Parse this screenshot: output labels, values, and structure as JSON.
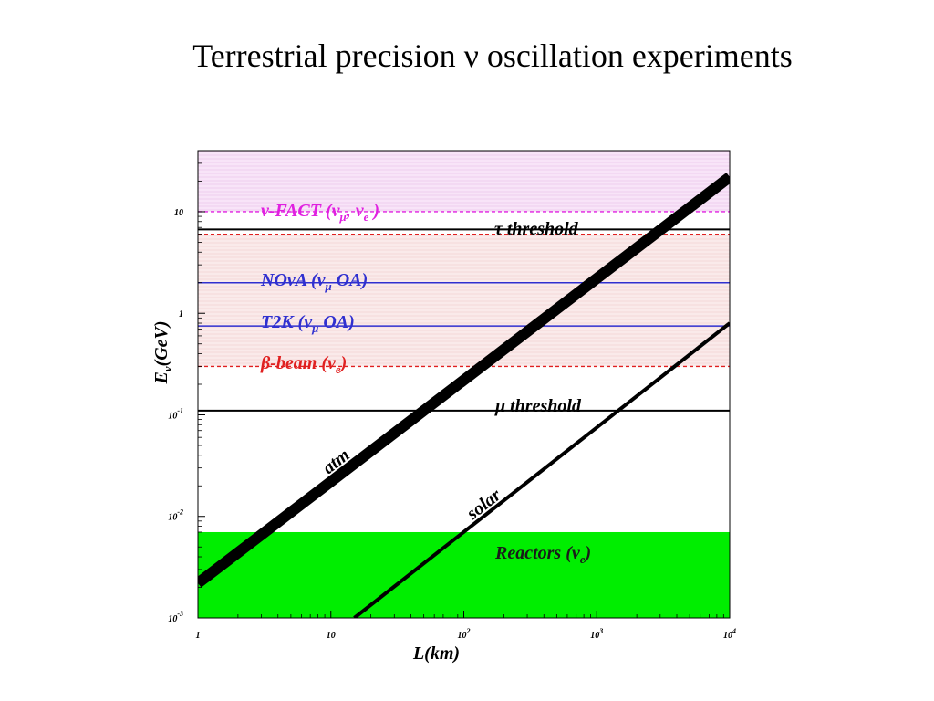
{
  "title": "Terrestrial precision ν oscillation experiments",
  "colors": {
    "nufact": "#e020e0",
    "beta_beam": "#e02020",
    "superbeam": "#3030d0",
    "threshold": "#000000",
    "reactor_band": "#00ee00",
    "nufact_region": "#f8e4f8",
    "beam_region": "#faeaea"
  },
  "chart_data": {
    "type": "line",
    "title": "",
    "xlabel": "L(km)",
    "ylabel": "Eν(GeV)",
    "x_scale": "log",
    "y_scale": "log",
    "xlim": [
      1,
      10000
    ],
    "ylim": [
      0.001,
      40
    ],
    "x_ticks": [
      {
        "value": 1,
        "base": "1",
        "exp": ""
      },
      {
        "value": 10,
        "base": "10",
        "exp": ""
      },
      {
        "value": 100,
        "base": "10",
        "exp": "2"
      },
      {
        "value": 1000,
        "base": "10",
        "exp": "3"
      },
      {
        "value": 10000,
        "base": "10",
        "exp": "4"
      }
    ],
    "y_ticks": [
      {
        "value": 10,
        "base": "10",
        "exp": ""
      },
      {
        "value": 1,
        "base": "1",
        "exp": ""
      },
      {
        "value": 0.1,
        "base": "10",
        "exp": "-1"
      },
      {
        "value": 0.01,
        "base": "10",
        "exp": "-2"
      },
      {
        "value": 0.001,
        "base": "10",
        "exp": "-3"
      }
    ],
    "regions": [
      {
        "name": "nufact-region",
        "y": [
          10,
          40
        ]
      },
      {
        "name": "beam-region",
        "y": [
          0.3,
          6
        ]
      },
      {
        "name": "reactor-region",
        "y": [
          0.001,
          0.007
        ]
      }
    ],
    "lines": [
      {
        "name": "ν-FACT",
        "energy": 10,
        "style": "dashed",
        "color_key": "nufact"
      },
      {
        "name": "τ threshold",
        "energy": 6.7,
        "style": "solid",
        "color_key": "threshold"
      },
      {
        "name": "nufact-lower",
        "energy": 6,
        "style": "dashed",
        "color_key": "beta_beam"
      },
      {
        "name": "NOvA",
        "energy": 2,
        "style": "solid",
        "color_key": "superbeam"
      },
      {
        "name": "T2K",
        "energy": 0.75,
        "style": "solid",
        "color_key": "superbeam"
      },
      {
        "name": "β-beam",
        "energy": 0.3,
        "style": "dashed",
        "color_key": "beta_beam"
      },
      {
        "name": "μ threshold",
        "energy": 0.11,
        "style": "solid",
        "color_key": "threshold"
      }
    ],
    "bands": [
      {
        "name": "atm",
        "points": [
          [
            1,
            0.0022
          ],
          [
            10000,
            22
          ]
        ],
        "width": 12
      },
      {
        "name": "solar",
        "points": [
          [
            15,
            0.001
          ],
          [
            10000,
            0.8
          ]
        ],
        "width": 4
      }
    ],
    "labels": {
      "nufact": {
        "prefix": "ν-FACT (ν",
        "sub1": "μ",
        "mid": ", ν",
        "sub2": "e",
        "suffix": " )"
      },
      "tau": "τ threshold",
      "nova": {
        "prefix": "NOvA (ν",
        "sub": "μ",
        "suffix": " OA)"
      },
      "t2k": {
        "prefix": "T2K (ν",
        "sub": "μ",
        "suffix": " OA)"
      },
      "beta": {
        "prefix": "β-beam (ν",
        "sub": "e",
        "suffix": ")"
      },
      "mu": "μ threshold",
      "atm": "atm",
      "solar": "solar",
      "reactors": {
        "prefix": "Reactors (ν",
        "sub": "e",
        "suffix": ")"
      }
    }
  }
}
